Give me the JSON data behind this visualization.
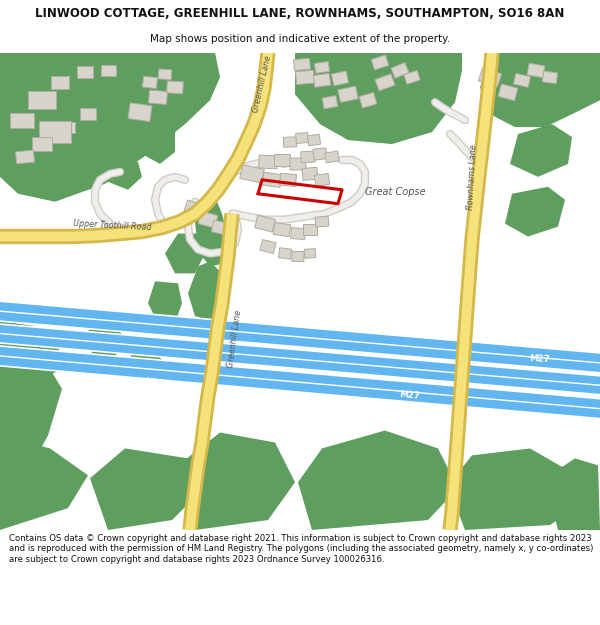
{
  "title_line1": "LINWOOD COTTAGE, GREENHILL LANE, ROWNHAMS, SOUTHAMPTON, SO16 8AN",
  "title_line2": "Map shows position and indicative extent of the property.",
  "footer_text": "Contains OS data © Crown copyright and database right 2021. This information is subject to Crown copyright and database rights 2023 and is reproduced with the permission of HM Land Registry. The polygons (including the associated geometry, namely x, y co-ordinates) are subject to Crown copyright and database rights 2023 Ordnance Survey 100026316.",
  "map_bg": "#f5f2ec",
  "green": "#5e9e5e",
  "road_dark": "#d4b84a",
  "road_light": "#f5e27a",
  "motorway_blue": "#62b6f0",
  "motorway_white": "#ffffff",
  "building_fill": "#d8d4cc",
  "building_edge": "#b0aca4",
  "property_red": "#cc0000",
  "label_color": "#555555",
  "white": "#ffffff",
  "header_bg": "#ffffff",
  "footer_bg": "#ffffff",
  "text_dark": "#111111",
  "grey_road": "#d0ccc8",
  "grey_road_light": "#f0eeea"
}
